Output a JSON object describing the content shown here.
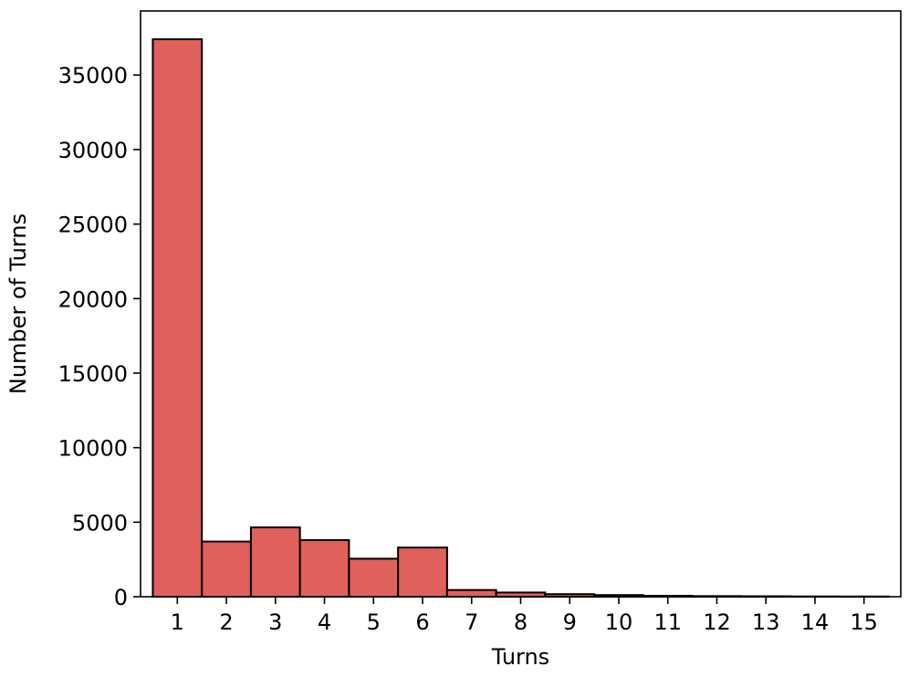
{
  "chart_data": {
    "type": "bar",
    "title": "",
    "xlabel": "Turns",
    "ylabel": "Number of Turns",
    "categories": [
      "1",
      "2",
      "3",
      "4",
      "5",
      "6",
      "7",
      "8",
      "9",
      "10",
      "11",
      "12",
      "13",
      "14",
      "15"
    ],
    "values": [
      37400,
      3700,
      4650,
      3800,
      2550,
      3300,
      450,
      280,
      170,
      110,
      60,
      40,
      30,
      20,
      15
    ],
    "xlim": [
      0.25,
      15.75
    ],
    "ylim": [
      0,
      39300
    ],
    "yticks": [
      0,
      5000,
      10000,
      15000,
      20000,
      25000,
      30000,
      35000
    ],
    "ytick_labels": [
      "0",
      "5000",
      "10000",
      "15000",
      "20000",
      "25000",
      "30000",
      "35000"
    ],
    "grid": false,
    "legend": "none",
    "colors": {
      "bar_fill": "#e0605c",
      "bar_edge": "#000000",
      "axis": "#000000"
    }
  }
}
